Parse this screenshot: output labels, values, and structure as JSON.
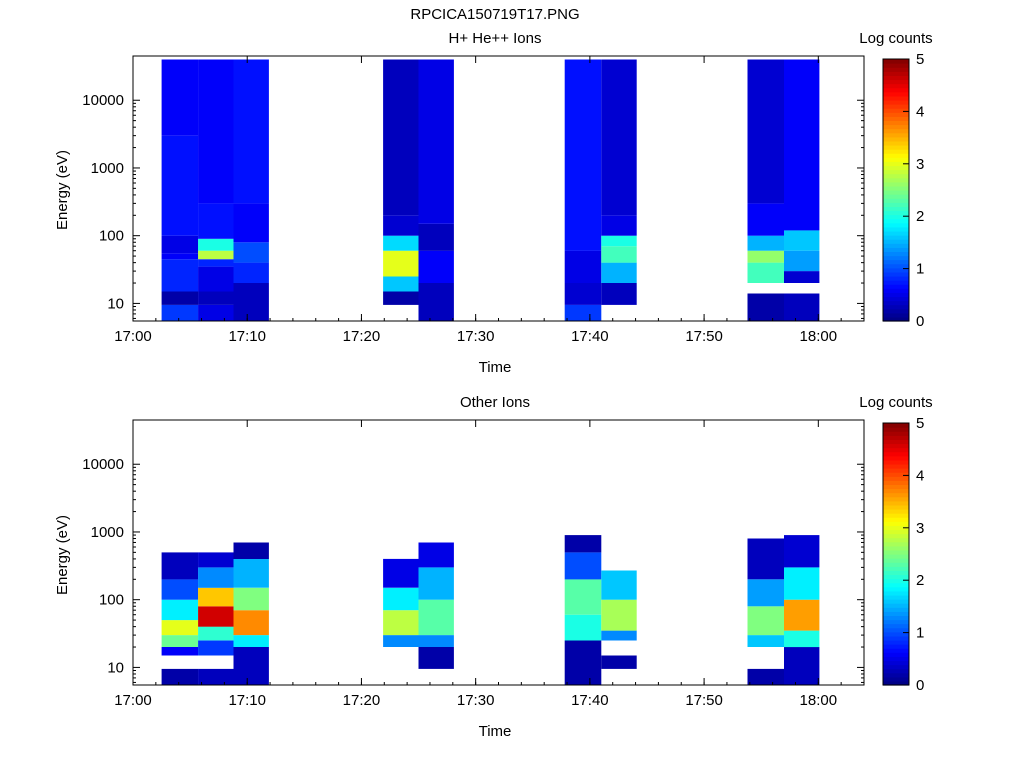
{
  "figure_title": "RPCICA150719T17.PNG",
  "colorbar": {
    "label": "Log counts",
    "ticks": [
      "0",
      "1",
      "2",
      "3",
      "4",
      "5"
    ],
    "min": 0,
    "max": 5,
    "colormap": "jet"
  },
  "chart_data": [
    {
      "type": "heatmap",
      "title": "H+ He++ Ions",
      "xlabel": "Time",
      "ylabel": "Energy (eV)",
      "x_ticks": [
        "17:00",
        "17:10",
        "17:20",
        "17:30",
        "17:40",
        "17:50",
        "18:00"
      ],
      "y_ticks": [
        "10",
        "100",
        "1000",
        "10000"
      ],
      "xlim": [
        "17:00",
        "18:04"
      ],
      "ylim": [
        5.5,
        45000
      ],
      "yscale": "log",
      "value_label": "Log counts",
      "columns": [
        {
          "start": "17:02.5",
          "end": "17:05.7",
          "bands": [
            [
              5.5,
              9.5,
              0.9
            ],
            [
              9.5,
              15,
              0.2
            ],
            [
              15,
              45,
              0.8
            ],
            [
              45,
              55,
              0.6
            ],
            [
              55,
              100,
              0.5
            ],
            [
              100,
              3000,
              0.7
            ],
            [
              3000,
              40000,
              0.6
            ]
          ]
        },
        {
          "start": "17:05.7",
          "end": "17:08.8",
          "bands": [
            [
              5.5,
              9.5,
              0.5
            ],
            [
              9.5,
              15,
              0.3
            ],
            [
              15,
              35,
              0.5
            ],
            [
              35,
              45,
              0.8
            ],
            [
              45,
              60,
              2.8
            ],
            [
              60,
              90,
              2.0
            ],
            [
              90,
              300,
              0.7
            ],
            [
              300,
              40000,
              0.6
            ]
          ]
        },
        {
          "start": "17:08.8",
          "end": "17:11.9",
          "bands": [
            [
              5.5,
              20,
              0.3
            ],
            [
              20,
              40,
              0.8
            ],
            [
              40,
              80,
              1.0
            ],
            [
              80,
              300,
              0.6
            ],
            [
              300,
              40000,
              0.7
            ]
          ]
        },
        {
          "start": "17:21.9",
          "end": "17:25.0",
          "bands": [
            [
              9.5,
              15,
              0.2
            ],
            [
              15,
              25,
              1.6
            ],
            [
              25,
              60,
              3.0
            ],
            [
              60,
              100,
              1.7
            ],
            [
              100,
              200,
              0.4
            ],
            [
              200,
              40000,
              0.3
            ]
          ]
        },
        {
          "start": "17:25.0",
          "end": "17:28.1",
          "bands": [
            [
              5.5,
              20,
              0.3
            ],
            [
              20,
              60,
              0.6
            ],
            [
              60,
              150,
              0.3
            ],
            [
              150,
              40000,
              0.5
            ]
          ]
        },
        {
          "start": "17:37.8",
          "end": "17:41.0",
          "bands": [
            [
              5.5,
              9.5,
              0.9
            ],
            [
              9.5,
              20,
              0.4
            ],
            [
              20,
              60,
              0.5
            ],
            [
              60,
              40000,
              0.7
            ]
          ]
        },
        {
          "start": "17:41.0",
          "end": "17:44.1",
          "bands": [
            [
              9.5,
              20,
              0.3
            ],
            [
              20,
              40,
              1.5
            ],
            [
              40,
              70,
              2.2
            ],
            [
              70,
              100,
              2.0
            ],
            [
              100,
              200,
              0.5
            ],
            [
              200,
              40000,
              0.4
            ]
          ]
        },
        {
          "start": "17:53.8",
          "end": "17:57.0",
          "bands": [
            [
              5.5,
              14,
              0.2
            ],
            [
              20,
              40,
              2.2
            ],
            [
              40,
              60,
              2.6
            ],
            [
              60,
              100,
              1.5
            ],
            [
              100,
              300,
              0.6
            ],
            [
              300,
              40000,
              0.4
            ]
          ]
        },
        {
          "start": "17:57.0",
          "end": "18:00.1",
          "bands": [
            [
              5.5,
              14,
              0.3
            ],
            [
              20,
              30,
              0.4
            ],
            [
              30,
              60,
              1.4
            ],
            [
              60,
              120,
              1.6
            ],
            [
              120,
              40000,
              0.6
            ]
          ]
        }
      ]
    },
    {
      "type": "heatmap",
      "title": "Other Ions",
      "xlabel": "Time",
      "ylabel": "Energy (eV)",
      "x_ticks": [
        "17:00",
        "17:10",
        "17:20",
        "17:30",
        "17:40",
        "17:50",
        "18:00"
      ],
      "y_ticks": [
        "10",
        "100",
        "1000",
        "10000"
      ],
      "xlim": [
        "17:00",
        "18:04"
      ],
      "ylim": [
        5.5,
        45000
      ],
      "yscale": "log",
      "value_label": "Log counts",
      "columns": [
        {
          "start": "17:02.5",
          "end": "17:05.7",
          "bands": [
            [
              5.5,
              9.5,
              0.2
            ],
            [
              15,
              20,
              0.6
            ],
            [
              20,
              30,
              2.4
            ],
            [
              30,
              50,
              3.0
            ],
            [
              50,
              100,
              1.8
            ],
            [
              100,
              200,
              1.0
            ],
            [
              200,
              500,
              0.3
            ]
          ]
        },
        {
          "start": "17:05.7",
          "end": "17:08.8",
          "bands": [
            [
              5.5,
              9.5,
              0.3
            ],
            [
              15,
              25,
              0.9
            ],
            [
              25,
              40,
              2.1
            ],
            [
              40,
              80,
              4.6
            ],
            [
              80,
              150,
              3.4
            ],
            [
              150,
              300,
              1.3
            ],
            [
              300,
              500,
              0.4
            ]
          ]
        },
        {
          "start": "17:08.8",
          "end": "17:11.9",
          "bands": [
            [
              5.5,
              20,
              0.3
            ],
            [
              20,
              30,
              1.8
            ],
            [
              30,
              70,
              3.7
            ],
            [
              70,
              150,
              2.5
            ],
            [
              150,
              400,
              1.5
            ],
            [
              400,
              700,
              0.2
            ]
          ]
        },
        {
          "start": "17:21.9",
          "end": "17:25.0",
          "bands": [
            [
              20,
              30,
              1.3
            ],
            [
              30,
              70,
              2.8
            ],
            [
              70,
              150,
              1.8
            ],
            [
              150,
              400,
              0.5
            ]
          ]
        },
        {
          "start": "17:25.0",
          "end": "17:28.1",
          "bands": [
            [
              9.5,
              20,
              0.2
            ],
            [
              20,
              30,
              1.3
            ],
            [
              30,
              100,
              2.3
            ],
            [
              100,
              300,
              1.5
            ],
            [
              300,
              700,
              0.5
            ]
          ]
        },
        {
          "start": "17:37.8",
          "end": "17:41.0",
          "bands": [
            [
              5.5,
              25,
              0.2
            ],
            [
              25,
              60,
              2.0
            ],
            [
              60,
              200,
              2.3
            ],
            [
              200,
              500,
              1.0
            ],
            [
              500,
              900,
              0.2
            ]
          ]
        },
        {
          "start": "17:41.0",
          "end": "17:44.1",
          "bands": [
            [
              9.5,
              15,
              0.2
            ],
            [
              25,
              35,
              1.3
            ],
            [
              35,
              100,
              2.7
            ],
            [
              100,
              270,
              1.6
            ]
          ]
        },
        {
          "start": "17:53.8",
          "end": "17:57.0",
          "bands": [
            [
              5.5,
              9.5,
              0.2
            ],
            [
              20,
              30,
              1.6
            ],
            [
              30,
              80,
              2.5
            ],
            [
              80,
              200,
              1.4
            ],
            [
              200,
              800,
              0.3
            ]
          ]
        },
        {
          "start": "17:57.0",
          "end": "18:00.1",
          "bands": [
            [
              5.5,
              20,
              0.3
            ],
            [
              20,
              35,
              2.0
            ],
            [
              35,
              100,
              3.6
            ],
            [
              100,
              300,
              1.8
            ],
            [
              300,
              900,
              0.4
            ]
          ]
        }
      ]
    }
  ]
}
